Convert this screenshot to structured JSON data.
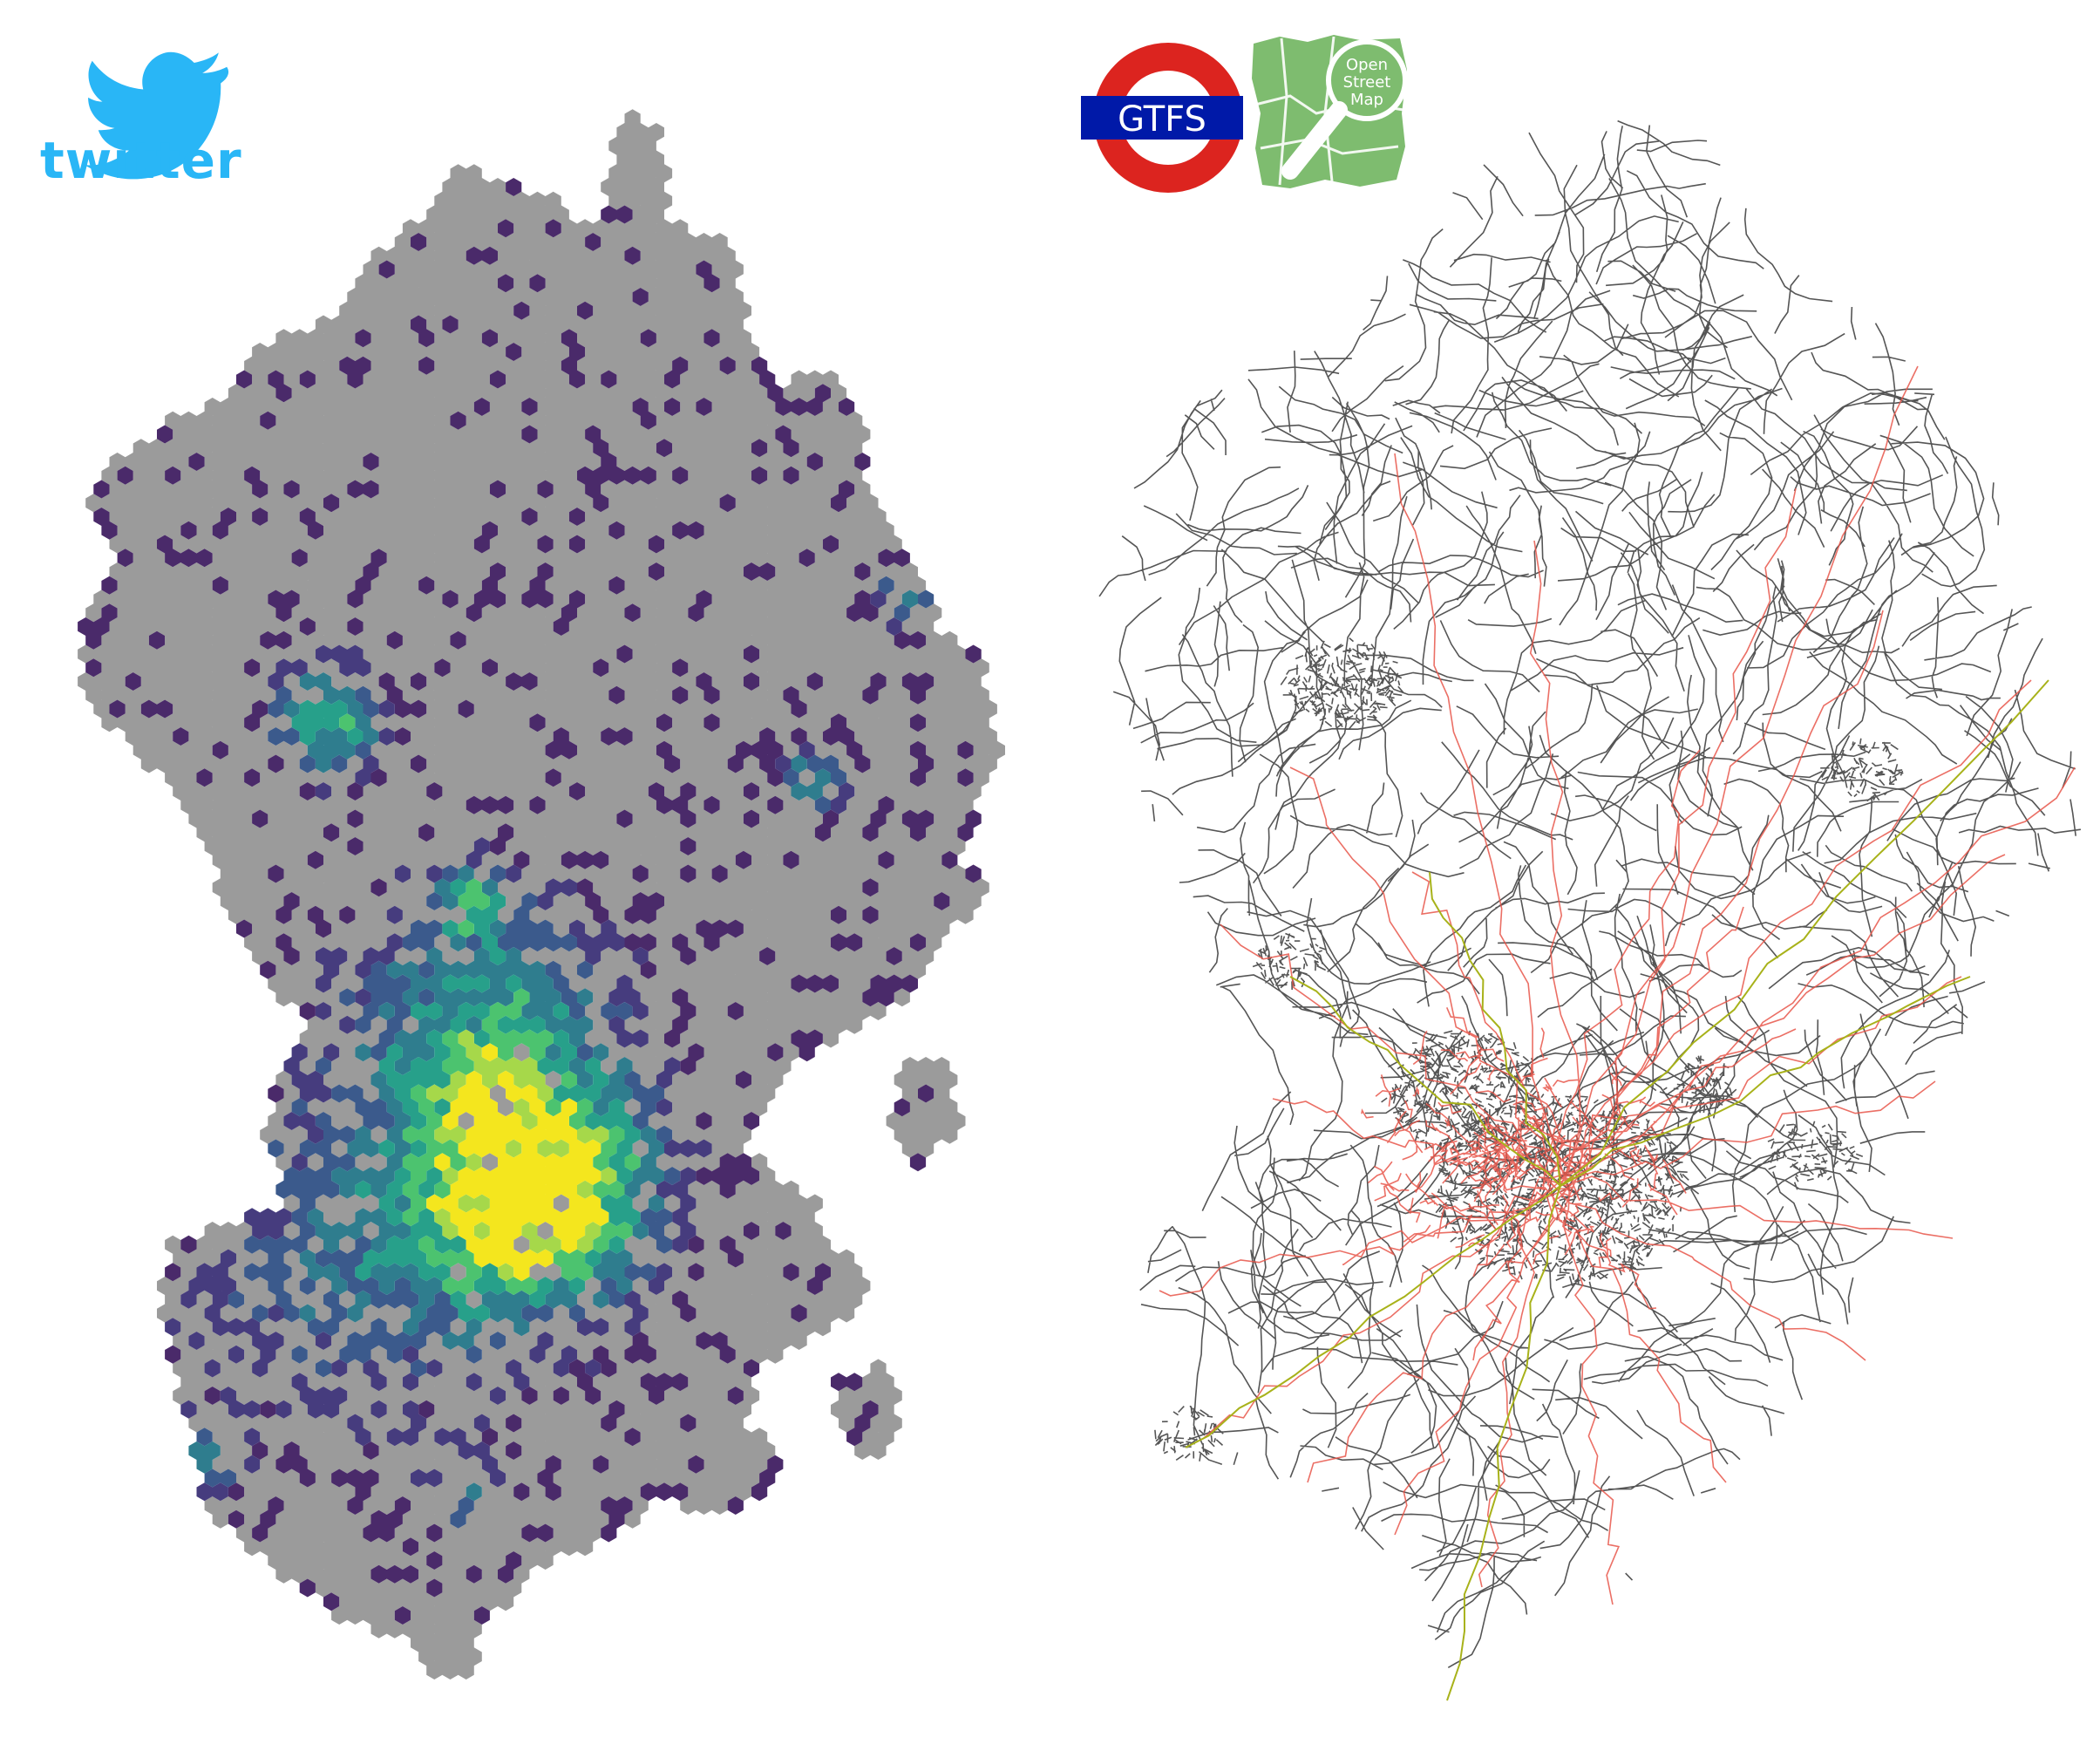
{
  "logos": {
    "twitter": {
      "label": "twitter",
      "color": "#29b6f6",
      "icon": "twitter-bird-icon"
    },
    "gtfs": {
      "label": "GTFS",
      "ring_color": "#dc241f",
      "bar_color": "#0019a8",
      "icon": "gtfs-roundel-icon"
    },
    "osm": {
      "label_lines": [
        "Open",
        "Street",
        "Map"
      ],
      "color": "#7ebc6f",
      "icon": "openstreetmap-icon"
    }
  },
  "left_map": {
    "type": "hexbin-density",
    "background_color": "#9b9b9b",
    "colormap": [
      "#4a2a6a",
      "#463c7e",
      "#3b5a8c",
      "#2f7d8e",
      "#27a08a",
      "#4cc36f",
      "#a6d84a",
      "#f4e61e"
    ]
  },
  "right_map": {
    "type": "network",
    "layers": [
      {
        "name": "roads",
        "color": "#555555"
      },
      {
        "name": "bus",
        "color": "#e8564a"
      },
      {
        "name": "rail",
        "color": "#a8b21a"
      }
    ]
  }
}
